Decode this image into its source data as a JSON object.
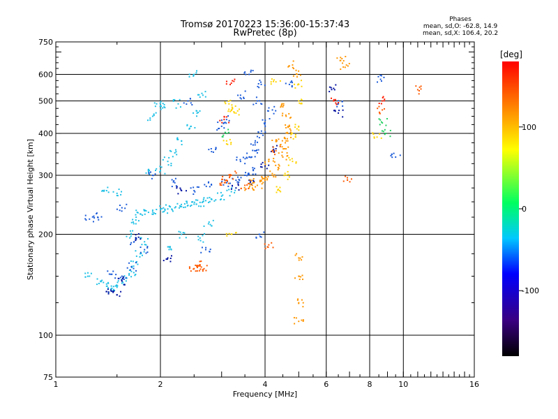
{
  "chart_data": {
    "type": "scatter",
    "title": "Tromsø 20170223 15:36:00-15:37:43",
    "subtitle": "RwPretec (8p)",
    "xlabel": "Frequency [MHz]",
    "ylabel": "Stationary phase Virtual Height [km]",
    "x_scale": "log",
    "y_scale": "log",
    "xlim": [
      1,
      16
    ],
    "ylim": [
      75,
      750
    ],
    "x_ticks": [
      1,
      2,
      4,
      6,
      8,
      10,
      16
    ],
    "y_ticks": [
      75,
      100,
      200,
      300,
      400,
      500,
      600,
      750
    ],
    "x_grid": [
      2,
      4,
      6,
      8,
      10
    ],
    "y_grid": [
      100,
      200,
      300,
      400,
      500,
      600
    ],
    "legend": {
      "title": "Phases",
      "line1": "mean, sd,O: -62.8, 14.9",
      "line2": "mean, sd,X: 106.4, 20.2"
    },
    "colorbar": {
      "title": "[deg]",
      "range": [
        -180,
        180
      ],
      "ticks": [
        100,
        0,
        -100
      ],
      "colors": [
        "#000000",
        "#3a0080",
        "#0000ff",
        "#00c8ff",
        "#00ff60",
        "#ffff00",
        "#ff8000",
        "#ff0000"
      ]
    },
    "series": [
      {
        "color": "#1ec0e6",
        "points": [
          [
            1.35,
            145
          ],
          [
            1.4,
            140
          ],
          [
            1.45,
            138
          ],
          [
            1.5,
            139
          ],
          [
            1.55,
            143
          ],
          [
            1.6,
            148
          ],
          [
            1.65,
            155
          ],
          [
            1.7,
            165
          ],
          [
            1.75,
            175
          ],
          [
            1.8,
            190
          ],
          [
            1.7,
            215
          ],
          [
            1.65,
            200
          ],
          [
            1.75,
            230
          ],
          [
            1.8,
            235
          ],
          [
            1.9,
            236
          ],
          [
            2.0,
            237
          ],
          [
            2.1,
            238
          ],
          [
            2.2,
            240
          ],
          [
            2.3,
            242
          ],
          [
            2.4,
            244
          ],
          [
            2.5,
            246
          ],
          [
            2.6,
            249
          ],
          [
            2.7,
            252
          ],
          [
            2.8,
            255
          ],
          [
            3.0,
            260
          ],
          [
            3.2,
            268
          ],
          [
            1.85,
            305
          ],
          [
            2.0,
            310
          ],
          [
            2.1,
            330
          ],
          [
            2.2,
            350
          ],
          [
            2.3,
            380
          ],
          [
            2.45,
            420
          ],
          [
            2.55,
            460
          ],
          [
            2.65,
            520
          ],
          [
            2.5,
            600
          ],
          [
            1.95,
            490
          ],
          [
            2.05,
            480
          ],
          [
            1.9,
            450
          ],
          [
            2.25,
            490
          ],
          [
            1.4,
            270
          ],
          [
            1.5,
            265
          ],
          [
            2.3,
            200
          ],
          [
            2.6,
            195
          ],
          [
            2.75,
            215
          ],
          [
            2.15,
            180
          ],
          [
            1.25,
            150
          ]
        ]
      },
      {
        "color": "#1a5ad8",
        "points": [
          [
            1.45,
            152
          ],
          [
            1.55,
            150
          ],
          [
            1.65,
            160
          ],
          [
            1.8,
            180
          ],
          [
            1.68,
            190
          ],
          [
            1.9,
            300
          ],
          [
            2.2,
            285
          ],
          [
            2.5,
            270
          ],
          [
            2.75,
            285
          ],
          [
            3.1,
            285
          ],
          [
            3.3,
            290
          ],
          [
            3.5,
            300
          ],
          [
            3.7,
            310
          ],
          [
            3.4,
            330
          ],
          [
            3.6,
            340
          ],
          [
            3.8,
            350
          ],
          [
            3.75,
            380
          ],
          [
            3.9,
            400
          ],
          [
            4.0,
            430
          ],
          [
            4.2,
            470
          ],
          [
            3.8,
            500
          ],
          [
            3.9,
            560
          ],
          [
            3.4,
            520
          ],
          [
            3.1,
            440
          ],
          [
            3.6,
            600
          ],
          [
            2.8,
            360
          ],
          [
            3.0,
            420
          ],
          [
            2.4,
            500
          ],
          [
            1.32,
            225
          ],
          [
            1.25,
            222
          ],
          [
            1.55,
            240
          ],
          [
            2.7,
            180
          ],
          [
            4.7,
            560
          ],
          [
            6.5,
            490
          ],
          [
            8.6,
            580
          ],
          [
            9.5,
            340
          ],
          [
            3.85,
            200
          ]
        ]
      },
      {
        "color": "#0010a0",
        "points": [
          [
            1.4,
            135
          ],
          [
            1.5,
            132
          ],
          [
            1.55,
            145
          ],
          [
            1.7,
            195
          ],
          [
            2.1,
            170
          ],
          [
            3.3,
            275
          ],
          [
            3.6,
            290
          ],
          [
            4.0,
            320
          ],
          [
            4.3,
            360
          ],
          [
            2.3,
            270
          ],
          [
            6.3,
            545
          ],
          [
            6.5,
            460
          ]
        ]
      },
      {
        "color": "#ff9600",
        "points": [
          [
            3.6,
            275
          ],
          [
            3.8,
            280
          ],
          [
            4.0,
            290
          ],
          [
            4.2,
            300
          ],
          [
            4.4,
            320
          ],
          [
            4.5,
            340
          ],
          [
            4.55,
            360
          ],
          [
            4.6,
            380
          ],
          [
            4.65,
            400
          ],
          [
            4.7,
            420
          ],
          [
            4.6,
            450
          ],
          [
            4.5,
            480
          ],
          [
            4.3,
            380
          ],
          [
            4.1,
            330
          ],
          [
            3.9,
            290
          ],
          [
            3.7,
            285
          ],
          [
            4.8,
            640
          ],
          [
            4.95,
            600
          ],
          [
            6.6,
            660
          ],
          [
            6.8,
            630
          ],
          [
            5.0,
            110
          ],
          [
            5.0,
            125
          ],
          [
            5.0,
            150
          ],
          [
            5.0,
            170
          ]
        ]
      },
      {
        "color": "#ff5a00",
        "points": [
          [
            2.5,
            158
          ],
          [
            2.55,
            160
          ],
          [
            2.6,
            162
          ],
          [
            2.65,
            157
          ],
          [
            3.0,
            285
          ],
          [
            3.1,
            290
          ],
          [
            3.2,
            300
          ],
          [
            3.5,
            280
          ],
          [
            4.1,
            186
          ],
          [
            4.3,
            355
          ],
          [
            6.9,
            295
          ],
          [
            11.0,
            540
          ],
          [
            8.7,
            470
          ]
        ]
      },
      {
        "color": "#ffd400",
        "points": [
          [
            3.15,
            490
          ],
          [
            3.2,
            470
          ],
          [
            3.1,
            380
          ],
          [
            3.3,
            460
          ],
          [
            4.4,
            270
          ],
          [
            4.6,
            300
          ],
          [
            4.8,
            330
          ],
          [
            4.9,
            390
          ],
          [
            5.0,
            420
          ],
          [
            5.0,
            500
          ],
          [
            5.0,
            560
          ],
          [
            4.3,
            570
          ],
          [
            8.4,
            390
          ],
          [
            3.2,
            200
          ]
        ]
      },
      {
        "color": "#20d060",
        "points": [
          [
            3.1,
            400
          ],
          [
            8.9,
            400
          ],
          [
            8.7,
            430
          ]
        ]
      },
      {
        "color": "#ff1a00",
        "points": [
          [
            3.2,
            565
          ],
          [
            6.3,
            500
          ],
          [
            8.7,
            500
          ],
          [
            3.05,
            440
          ]
        ]
      }
    ]
  }
}
